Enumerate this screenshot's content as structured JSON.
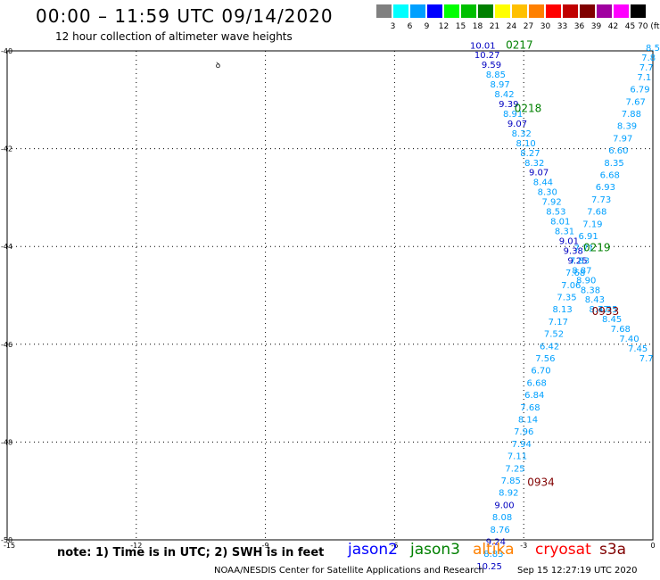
{
  "header": {
    "title": "00:00 – 11:59 UTC 09/14/2020",
    "subtitle": "12 hour collection of altimeter wave heights"
  },
  "legend": {
    "unit": "(ft)",
    "bins": [
      {
        "label": "3",
        "color": "#808080"
      },
      {
        "label": "6",
        "color": "#00ffff"
      },
      {
        "label": "9",
        "color": "#00a0ff"
      },
      {
        "label": "12",
        "color": "#0000ff"
      },
      {
        "label": "15",
        "color": "#00ff00"
      },
      {
        "label": "18",
        "color": "#00c000"
      },
      {
        "label": "21",
        "color": "#008000"
      },
      {
        "label": "24",
        "color": "#ffff00"
      },
      {
        "label": "27",
        "color": "#ffc000"
      },
      {
        "label": "30",
        "color": "#ff8000"
      },
      {
        "label": "33",
        "color": "#ff0000"
      },
      {
        "label": "36",
        "color": "#c00000"
      },
      {
        "label": "39",
        "color": "#800000"
      },
      {
        "label": "42",
        "color": "#a000a0"
      },
      {
        "label": "45",
        "color": "#ff00ff"
      },
      {
        "label": "70",
        "color": "#000000"
      }
    ]
  },
  "axes": {
    "lon_labels": [
      "-15",
      "-12",
      "-9",
      "-6",
      "-3",
      "0"
    ],
    "lat_labels": [
      "-40",
      "-42",
      "-44",
      "-46",
      "-48",
      "-50"
    ]
  },
  "colors": {
    "swh_light": "#00a0ff",
    "swh_dark": "#0000c0",
    "jason2": "#0000ff",
    "jason3": "#008000",
    "altika": "#ff8000",
    "cryosat": "#ff0000",
    "s3a": "#800000"
  },
  "tracks": [
    {
      "time": "0217",
      "color": "#008000",
      "time_lon": -3.1,
      "time_lat": -39.95,
      "points": [
        {
          "lon": -3.95,
          "lat": -39.95,
          "v": "10.01"
        },
        {
          "lon": -3.85,
          "lat": -40.15,
          "v": "10.27"
        },
        {
          "lon": -3.75,
          "lat": -40.35,
          "v": "9.59"
        },
        {
          "lon": -3.65,
          "lat": -40.55,
          "v": "8.85"
        },
        {
          "lon": -3.55,
          "lat": -40.75,
          "v": "8.97"
        },
        {
          "lon": -3.45,
          "lat": -40.95,
          "v": "8.42"
        },
        {
          "lon": -3.35,
          "lat": -41.15,
          "v": "9.39"
        },
        {
          "lon": -3.25,
          "lat": -41.35,
          "v": "8.91"
        },
        {
          "lon": -3.15,
          "lat": -41.55,
          "v": "9.07"
        },
        {
          "lon": -3.05,
          "lat": -41.75,
          "v": "8.32"
        },
        {
          "lon": -2.95,
          "lat": -41.95,
          "v": "8.10"
        },
        {
          "lon": -2.85,
          "lat": -42.15,
          "v": "8.27"
        },
        {
          "lon": -2.75,
          "lat": -42.35,
          "v": "8.32"
        },
        {
          "lon": -2.65,
          "lat": -42.55,
          "v": "9.07"
        },
        {
          "lon": -2.55,
          "lat": -42.75,
          "v": "8.44"
        },
        {
          "lon": -2.45,
          "lat": -42.95,
          "v": "8.30"
        },
        {
          "lon": -2.35,
          "lat": -43.15,
          "v": "7.92"
        },
        {
          "lon": -2.25,
          "lat": -43.35,
          "v": "8.53"
        },
        {
          "lon": -2.15,
          "lat": -43.55,
          "v": "8.01"
        },
        {
          "lon": -2.05,
          "lat": -43.75,
          "v": "8.31"
        },
        {
          "lon": -1.95,
          "lat": -43.95,
          "v": "9.01"
        },
        {
          "lon": -1.85,
          "lat": -44.15,
          "v": "9.38"
        },
        {
          "lon": -1.75,
          "lat": -44.35,
          "v": "9.25"
        },
        {
          "lon": -1.65,
          "lat": -44.55,
          "v": "8.87"
        },
        {
          "lon": -1.55,
          "lat": -44.75,
          "v": "8.90"
        },
        {
          "lon": -1.45,
          "lat": -44.95,
          "v": "8.38"
        },
        {
          "lon": -1.35,
          "lat": -45.15,
          "v": "8.43"
        },
        {
          "lon": -1.25,
          "lat": -45.35,
          "v": "8.47"
        }
      ]
    },
    {
      "time": "0218",
      "color": "#008000",
      "time_lon": -2.9,
      "time_lat": -41.25,
      "points": []
    },
    {
      "time": "0219",
      "color": "#008000",
      "time_lon": -1.3,
      "time_lat": -44.1,
      "points": [
        {
          "lon": 0.0,
          "lat": -40.0,
          "v": "8.5"
        },
        {
          "lon": -0.1,
          "lat": -40.2,
          "v": "7.8"
        },
        {
          "lon": -0.15,
          "lat": -40.4,
          "v": "7.7"
        },
        {
          "lon": -0.2,
          "lat": -40.6,
          "v": "7.1"
        },
        {
          "lon": -0.3,
          "lat": -40.85,
          "v": "6.79"
        },
        {
          "lon": -0.4,
          "lat": -41.1,
          "v": "7.67"
        },
        {
          "lon": -0.5,
          "lat": -41.35,
          "v": "7.88"
        },
        {
          "lon": -0.6,
          "lat": -41.6,
          "v": "8.39"
        },
        {
          "lon": -0.7,
          "lat": -41.85,
          "v": "7.97"
        },
        {
          "lon": -0.8,
          "lat": -42.1,
          "v": "6.60"
        },
        {
          "lon": -0.9,
          "lat": -42.35,
          "v": "8.35"
        },
        {
          "lon": -1.0,
          "lat": -42.6,
          "v": "6.68"
        },
        {
          "lon": -1.1,
          "lat": -42.85,
          "v": "6.93"
        },
        {
          "lon": -1.2,
          "lat": -43.1,
          "v": "7.73"
        },
        {
          "lon": -1.3,
          "lat": -43.35,
          "v": "7.68"
        },
        {
          "lon": -1.4,
          "lat": -43.6,
          "v": "7.19"
        },
        {
          "lon": -1.5,
          "lat": -43.85,
          "v": "6.91"
        },
        {
          "lon": -1.6,
          "lat": -44.1,
          "v": "7.71"
        },
        {
          "lon": -1.7,
          "lat": -44.35,
          "v": "7.83"
        },
        {
          "lon": -1.8,
          "lat": -44.6,
          "v": "7.68"
        },
        {
          "lon": -1.9,
          "lat": -44.85,
          "v": "7.06"
        },
        {
          "lon": -2.0,
          "lat": -45.1,
          "v": "7.35"
        },
        {
          "lon": -2.1,
          "lat": -45.35,
          "v": "8.13"
        },
        {
          "lon": -2.2,
          "lat": -45.6,
          "v": "7.17"
        },
        {
          "lon": -2.3,
          "lat": -45.85,
          "v": "7.52"
        },
        {
          "lon": -2.4,
          "lat": -46.1,
          "v": "6.42"
        },
        {
          "lon": -2.5,
          "lat": -46.35,
          "v": "7.56"
        },
        {
          "lon": -2.6,
          "lat": -46.6,
          "v": "6.70"
        },
        {
          "lon": -2.7,
          "lat": -46.85,
          "v": "6.68"
        },
        {
          "lon": -2.75,
          "lat": -47.1,
          "v": "6.84"
        },
        {
          "lon": -2.85,
          "lat": -47.35,
          "v": "7.68"
        },
        {
          "lon": -2.9,
          "lat": -47.6,
          "v": "8.14"
        },
        {
          "lon": -3.0,
          "lat": -47.85,
          "v": "7.96"
        },
        {
          "lon": -3.05,
          "lat": -48.1,
          "v": "7.94"
        },
        {
          "lon": -3.15,
          "lat": -48.35,
          "v": "7.11"
        },
        {
          "lon": -3.2,
          "lat": -48.6,
          "v": "7.25"
        },
        {
          "lon": -3.3,
          "lat": -48.85,
          "v": "7.85"
        },
        {
          "lon": -3.35,
          "lat": -49.1,
          "v": "8.92"
        },
        {
          "lon": -3.45,
          "lat": -49.35,
          "v": "9.00"
        },
        {
          "lon": -3.5,
          "lat": -49.6,
          "v": "8.08"
        },
        {
          "lon": -3.55,
          "lat": -49.85,
          "v": "8.76"
        },
        {
          "lon": -3.65,
          "lat": -50.1,
          "v": "9.24"
        },
        {
          "lon": -3.7,
          "lat": -50.35,
          "v": "8.83"
        },
        {
          "lon": -3.8,
          "lat": -50.6,
          "v": "10.25"
        }
      ]
    },
    {
      "time": "0933",
      "color": "#800000",
      "time_lon": -1.1,
      "time_lat": -45.4,
      "points": [
        {
          "lon": -1.05,
          "lat": -45.35,
          "v": "7.35"
        },
        {
          "lon": -0.95,
          "lat": -45.55,
          "v": "8.45"
        },
        {
          "lon": -0.75,
          "lat": -45.75,
          "v": "7.68"
        },
        {
          "lon": -0.55,
          "lat": -45.95,
          "v": "7.40"
        },
        {
          "lon": -0.35,
          "lat": -46.15,
          "v": "7.45"
        },
        {
          "lon": -0.15,
          "lat": -46.35,
          "v": "7.7"
        }
      ]
    },
    {
      "time": "0934",
      "color": "#800000",
      "time_lon": -2.6,
      "time_lat": -48.9,
      "points": []
    }
  ],
  "markers": [
    {
      "lon": -10.1,
      "lat": -40.35,
      "label": "ꝺ"
    }
  ],
  "note": "note:  1) Time is in UTC;  2) SWH is in feet",
  "satellites": [
    {
      "label": "jason2",
      "color": "#0000ff"
    },
    {
      "label": "jason3",
      "color": "#008000"
    },
    {
      "label": "altika",
      "color": "#ff8000"
    },
    {
      "label": "cryosat",
      "color": "#ff0000"
    },
    {
      "label": "s3a",
      "color": "#800000"
    }
  ],
  "footer": {
    "credit": "NOAA/NESDIS Center for Satellite Applications and Research",
    "timestamp": "Sep 15 12:27:19 UTC 2020"
  }
}
